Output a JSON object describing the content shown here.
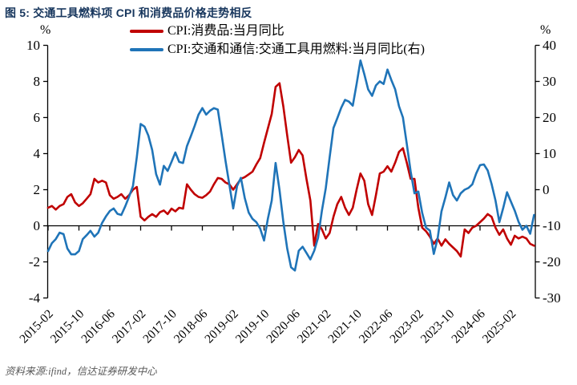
{
  "page": {
    "title": "图 5: 交通工具燃料项 CPI 和消费品价格走势相反",
    "unit_left": "%",
    "unit_right": "%",
    "source_note": "资料来源:ifind，信达证券研发中心"
  },
  "chart_data": {
    "type": "line",
    "title": "交通工具燃料项 CPI 和消费品价格走势相反",
    "x_start": "2015-02",
    "x_frequency": "monthly",
    "x_tick_labels": [
      "2015-02",
      "2015-10",
      "2016-06",
      "2017-02",
      "2017-10",
      "2018-06",
      "2019-02",
      "2019-10",
      "2020-06",
      "2021-02",
      "2021-10",
      "2022-06",
      "2023-02",
      "2023-10",
      "2024-06",
      "2025-02"
    ],
    "left_axis": {
      "unit": "%",
      "min": -4,
      "max": 10,
      "ticks": [
        10,
        8,
        6,
        4,
        2,
        0,
        -2,
        -4
      ]
    },
    "right_axis": {
      "unit": "%",
      "min": -30,
      "max": 40,
      "ticks": [
        40,
        30,
        20,
        10,
        0,
        -10,
        -20,
        -30
      ]
    },
    "legend_position": "top-center",
    "grid": false,
    "series": [
      {
        "name": "CPI:消费品:当月同比",
        "axis": "left",
        "color": "#c00000",
        "values": [
          1.0,
          1.1,
          0.9,
          1.1,
          1.2,
          1.6,
          1.75,
          1.3,
          1.1,
          1.25,
          1.5,
          1.75,
          2.6,
          2.4,
          2.5,
          2.4,
          1.7,
          1.5,
          1.6,
          1.75,
          1.5,
          1.7,
          2.0,
          2.15,
          0.5,
          0.3,
          0.5,
          0.65,
          0.5,
          0.75,
          0.85,
          0.65,
          0.95,
          0.8,
          1.0,
          0.95,
          2.3,
          2.0,
          1.75,
          1.6,
          1.55,
          1.7,
          1.9,
          2.3,
          2.65,
          2.6,
          2.4,
          2.3,
          2.0,
          2.3,
          2.6,
          2.7,
          2.85,
          3.0,
          3.4,
          3.75,
          4.6,
          5.4,
          6.2,
          7.7,
          7.9,
          6.6,
          5.0,
          3.5,
          3.8,
          4.2,
          3.9,
          2.6,
          1.4,
          -1.1,
          0.1,
          -0.2,
          -0.7,
          -0.4,
          0.5,
          1.2,
          1.6,
          1.0,
          0.6,
          1.0,
          2.0,
          2.9,
          2.5,
          1.2,
          0.6,
          1.7,
          2.9,
          3.0,
          3.3,
          3.0,
          3.5,
          4.1,
          4.3,
          3.5,
          2.6,
          2.6,
          1.0,
          -0.1,
          -0.3,
          -0.6,
          -1.0,
          -0.7,
          -1.1,
          -0.75,
          -1.0,
          -1.2,
          -1.4,
          -1.7,
          -0.2,
          -0.4,
          -0.1,
          0.0,
          0.2,
          0.4,
          0.65,
          0.5,
          -0.1,
          -0.5,
          -0.2,
          -0.7,
          -1.05,
          -0.55,
          -0.7,
          -0.6,
          -0.7,
          -1.0,
          -1.1
        ]
      },
      {
        "name": "CPI:交通和通信:交通工具用燃料:当月同比(右)",
        "axis": "right",
        "color": "#1f74b8",
        "values": [
          -17.0,
          -14.8,
          -13.7,
          -11.9,
          -12.3,
          -16.3,
          -17.9,
          -17.9,
          -17.0,
          -13.7,
          -12.6,
          -11.4,
          -13.0,
          -11.9,
          -9.2,
          -7.4,
          -5.9,
          -5.2,
          -6.7,
          -7.0,
          -4.6,
          -1.9,
          1.0,
          9.0,
          18.2,
          17.5,
          15.0,
          11.0,
          4.3,
          1.4,
          6.6,
          5.2,
          7.7,
          10.3,
          7.7,
          7.4,
          12.1,
          14.8,
          17.7,
          20.8,
          22.6,
          20.8,
          21.9,
          22.6,
          22.2,
          15.2,
          8.0,
          1.4,
          -5.2,
          1.0,
          3.3,
          -2.3,
          -6.3,
          -8.1,
          -9.0,
          -10.8,
          -14.1,
          -8.0,
          -3.0,
          7.4,
          -0.1,
          -9.0,
          -16.3,
          -21.5,
          -22.4,
          -16.9,
          -15.8,
          -17.5,
          -19.3,
          -16.9,
          -13.3,
          -5.8,
          0.4,
          8.9,
          17.1,
          19.8,
          22.7,
          24.9,
          24.4,
          23.3,
          29.3,
          35.8,
          32.0,
          27.8,
          26.0,
          28.9,
          30.0,
          29.3,
          33.3,
          30.4,
          27.8,
          23.1,
          20.0,
          12.7,
          5.1,
          -1.0,
          -0.5,
          -6.4,
          -10.5,
          -11.3,
          -17.8,
          -13.5,
          -6.0,
          -2.2,
          2.0,
          -1.5,
          -3.0,
          -1.0,
          0.0,
          0.5,
          1.5,
          4.5,
          6.8,
          7.0,
          5.3,
          1.6,
          -3.0,
          -9.0,
          -5.1,
          -0.7,
          -3.3,
          -5.8,
          -8.9,
          -11.1,
          -10.0,
          -12.2,
          -7.0
        ]
      }
    ],
    "source": "资料来源:ifind，信达证券研发中心"
  }
}
